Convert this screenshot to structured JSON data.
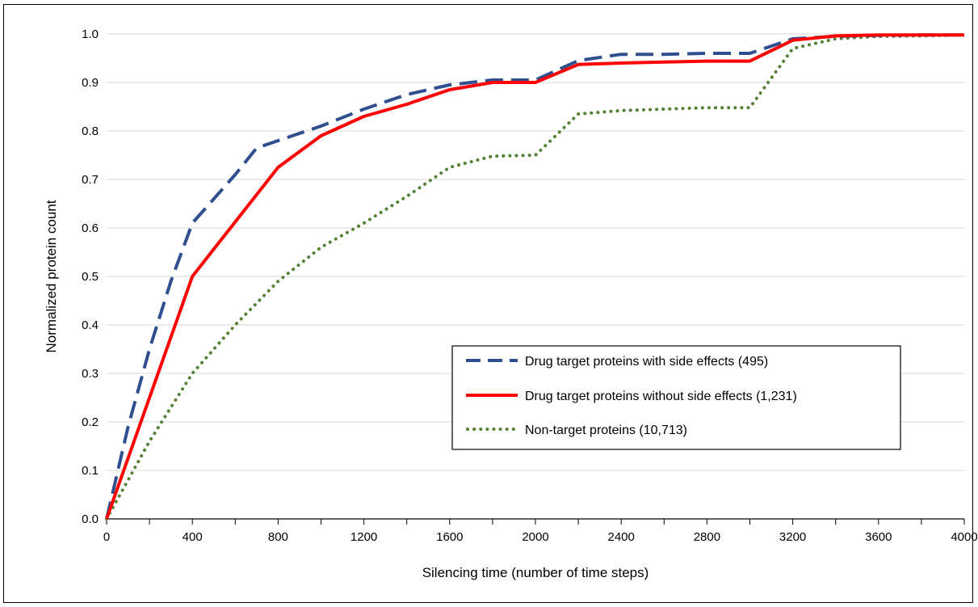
{
  "chart_data": {
    "type": "line",
    "title": "",
    "xlabel": "Silencing time (number of time steps)",
    "ylabel": "Normalized protein count",
    "xlim": [
      0,
      4000
    ],
    "ylim": [
      0,
      1.0
    ],
    "x_ticks": [
      "0",
      "400",
      "800",
      "1200",
      "1600",
      "2000",
      "2400",
      "2800",
      "3200",
      "3600",
      "4000"
    ],
    "y_ticks": [
      "0.0",
      "0.1",
      "0.2",
      "0.3",
      "0.4",
      "0.5",
      "0.6",
      "0.7",
      "0.8",
      "0.9",
      "1.0"
    ],
    "grid": "horizontal",
    "legend_position": "center-right",
    "series": [
      {
        "name": "Drug target proteins with side effects (495)",
        "color": "#2f4f8f",
        "style": "dashed",
        "x": [
          0,
          100,
          200,
          300,
          400,
          500,
          600,
          700,
          800,
          1000,
          1200,
          1400,
          1600,
          1800,
          2000,
          2200,
          2400,
          2600,
          2800,
          3000,
          3200,
          3400,
          3600,
          3800,
          4000
        ],
        "values": [
          0,
          0.19,
          0.35,
          0.49,
          0.61,
          0.66,
          0.71,
          0.765,
          0.78,
          0.81,
          0.845,
          0.875,
          0.895,
          0.905,
          0.905,
          0.945,
          0.958,
          0.958,
          0.96,
          0.96,
          0.99,
          0.995,
          0.997,
          0.998,
          0.998
        ]
      },
      {
        "name": "Drug target proteins without side effects (1,231)",
        "color": "#ff0000",
        "style": "solid",
        "x": [
          0,
          400,
          800,
          1000,
          1200,
          1400,
          1600,
          1800,
          2000,
          2200,
          2400,
          2600,
          2800,
          3000,
          3200,
          3400,
          3600,
          3800,
          4000
        ],
        "values": [
          0,
          0.5,
          0.725,
          0.79,
          0.83,
          0.855,
          0.885,
          0.9,
          0.9,
          0.937,
          0.94,
          0.942,
          0.944,
          0.944,
          0.987,
          0.996,
          0.998,
          0.998,
          0.998
        ]
      },
      {
        "name": "Non-target proteins (10,713)",
        "color": "#548235",
        "style": "dotted",
        "x": [
          0,
          200,
          400,
          600,
          800,
          1000,
          1200,
          1400,
          1600,
          1800,
          2000,
          2200,
          2400,
          2600,
          2800,
          3000,
          3200,
          3400,
          3600,
          3800,
          4000
        ],
        "values": [
          0,
          0.16,
          0.3,
          0.4,
          0.49,
          0.56,
          0.61,
          0.665,
          0.725,
          0.748,
          0.75,
          0.835,
          0.842,
          0.845,
          0.848,
          0.848,
          0.97,
          0.99,
          0.995,
          0.996,
          0.998
        ]
      }
    ]
  }
}
